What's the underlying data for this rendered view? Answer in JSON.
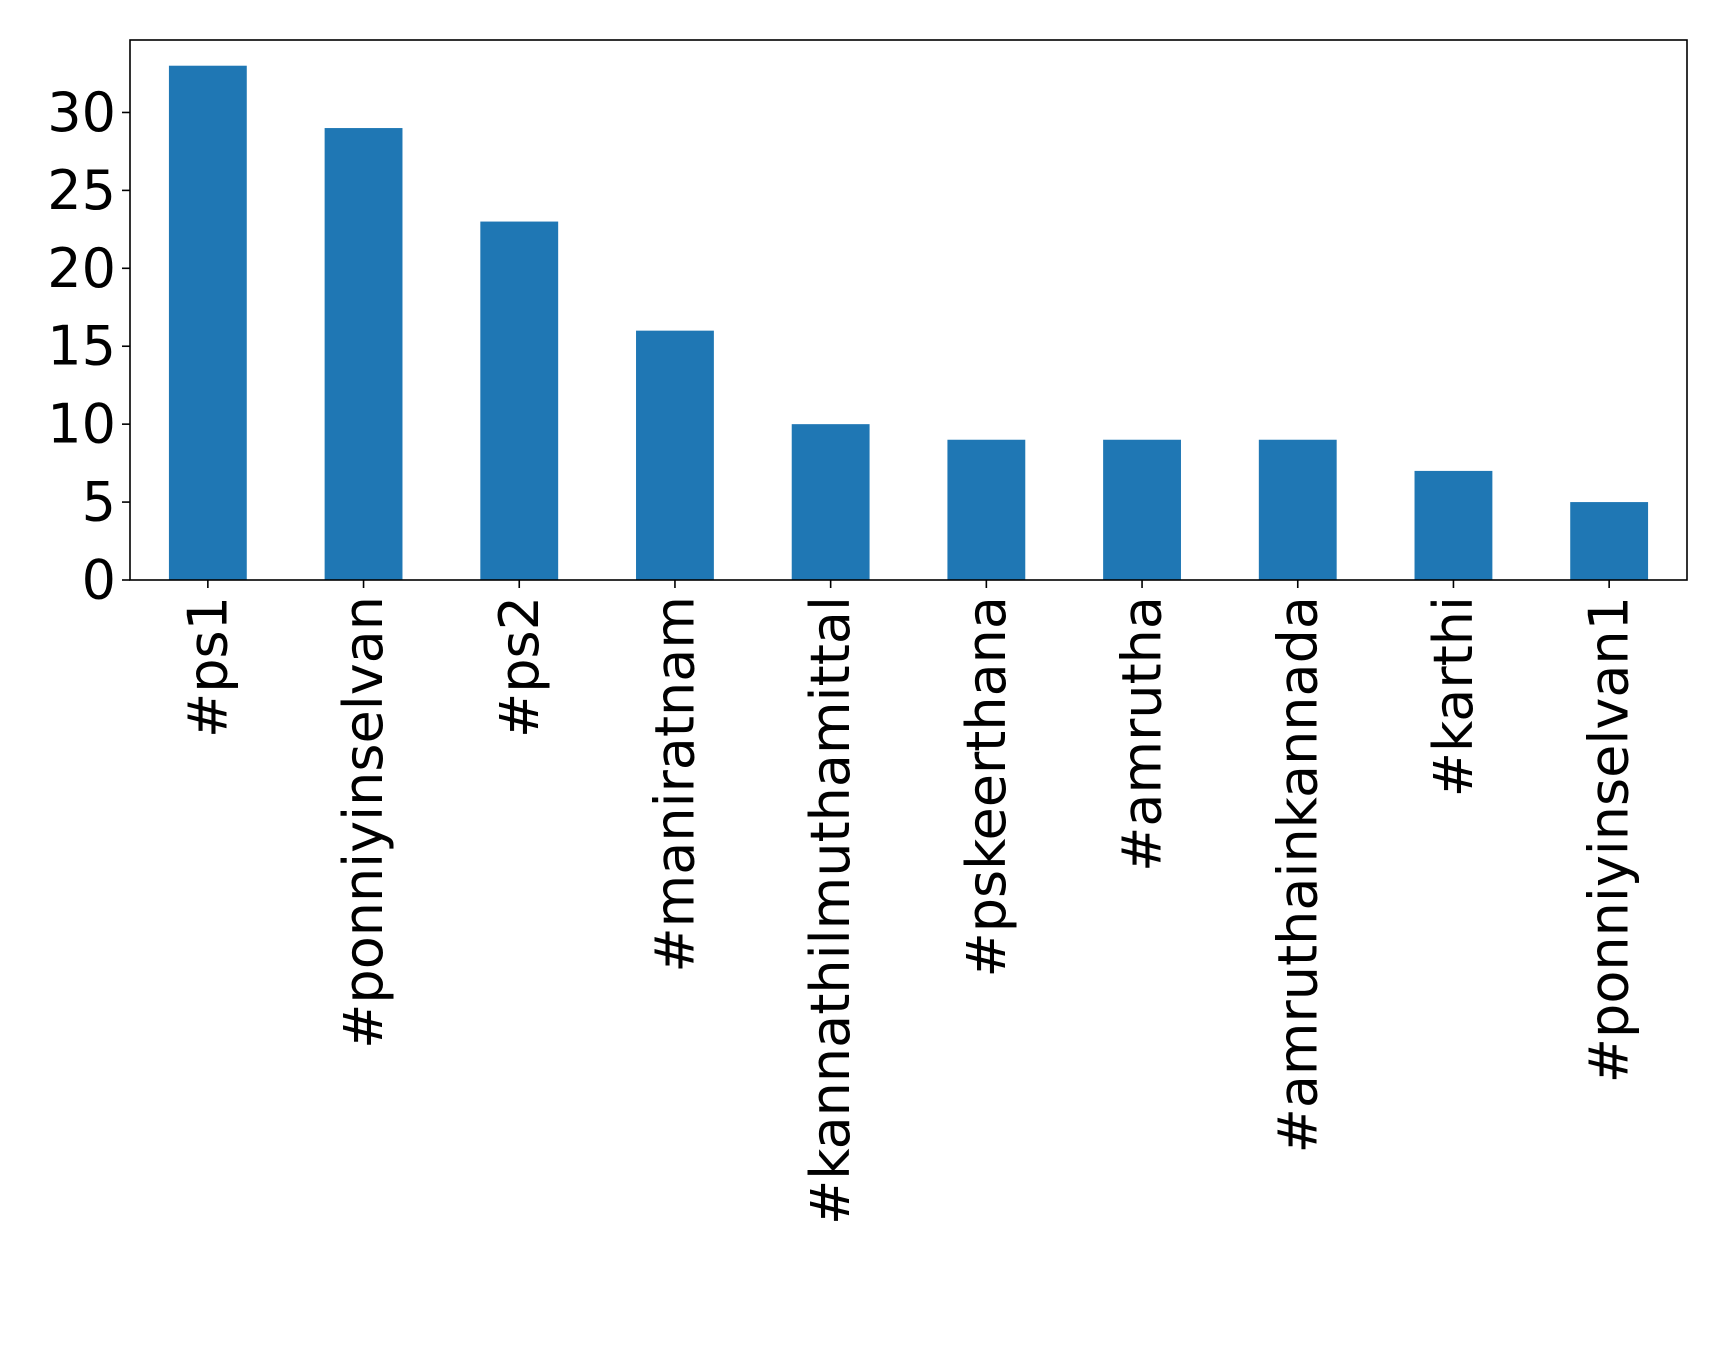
{
  "chart_data": {
    "type": "bar",
    "title": "",
    "xlabel": "",
    "ylabel": "",
    "categories": [
      "#ps1",
      "#ponniyinselvan",
      "#ps2",
      "#maniratnam",
      "#kannathilmuthamittal",
      "#pskeerthana",
      "#amrutha",
      "#amruthainkannada",
      "#karthi",
      "#ponniyinselvan1"
    ],
    "values": [
      33,
      29,
      23,
      16,
      10,
      9,
      9,
      9,
      7,
      5
    ],
    "ylim": [
      0,
      34.65
    ],
    "yticks": [
      0,
      5,
      10,
      15,
      20,
      25,
      30
    ],
    "grid": false,
    "legend": "none",
    "bar_color": "#1f77b4"
  }
}
